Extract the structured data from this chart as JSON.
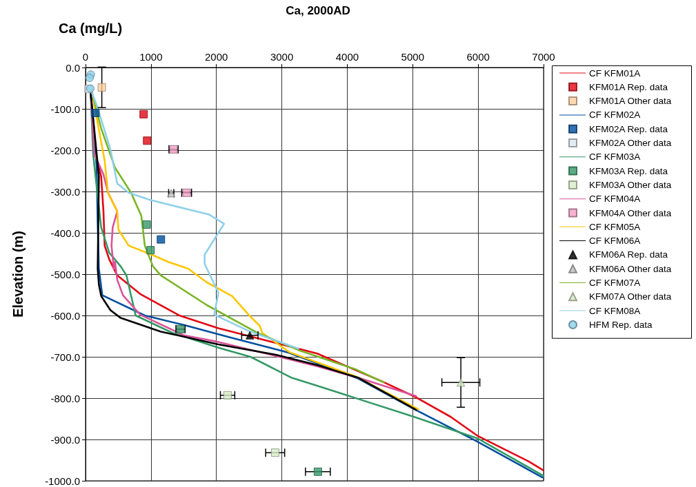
{
  "chart_data": {
    "type": "line",
    "title": "Ca, 2000AD",
    "xlabel": "Ca (mg/L)",
    "ylabel": "Elevation (m)",
    "xlim": [
      0,
      7000
    ],
    "xticks": [
      0,
      1000,
      2000,
      3000,
      4000,
      5000,
      6000,
      7000
    ],
    "ylim": [
      -1000,
      0
    ],
    "yticks": [
      {
        "value": 0,
        "label": "0.0"
      },
      {
        "value": -100,
        "label": "-100.0"
      },
      {
        "value": -200,
        "label": "-200.0"
      },
      {
        "value": -300,
        "label": "-300.0"
      },
      {
        "value": -400,
        "label": "-400.0"
      },
      {
        "value": -500,
        "label": "-500.0"
      },
      {
        "value": -600,
        "label": "-600.0"
      },
      {
        "value": -700,
        "label": "-700.0"
      },
      {
        "value": -800,
        "label": "-800.0"
      },
      {
        "value": -900,
        "label": "-900.0"
      },
      {
        "value": -1000,
        "label": "-1000.0"
      }
    ],
    "grid": true,
    "legend": "right",
    "series": [
      {
        "name": "CF KFM01A",
        "marker": "none",
        "color": "#e30613",
        "x": [
          80,
          169,
          239,
          274,
          292,
          362,
          485,
          836,
          1433,
          2030,
          3540,
          4524,
          5051,
          5578,
          6000,
          6772,
          6990
        ],
        "values": [
          -64,
          -220,
          -264,
          -348,
          -431,
          -464,
          -503,
          -548,
          -600,
          -631,
          -692,
          -759,
          -798,
          -845,
          -892,
          -953,
          -974
        ]
      },
      {
        "name": "KFM01A Rep. data",
        "type": "scatter",
        "marker": "square",
        "color": "#e30613",
        "x": [
          888,
          941
        ],
        "values": [
          -113,
          -177
        ]
      },
      {
        "name": "KFM01A Other data",
        "type": "scatter",
        "marker": "square",
        "color": "#fdd0a0",
        "x": [
          249
        ],
        "values": [
          -48
        ],
        "errors": [
          49
        ]
      },
      {
        "name": "CF KFM02A",
        "marker": "none",
        "color": "#004f9f",
        "x": [
          80,
          169,
          186,
          204,
          256,
          906,
          1503,
          2206,
          3084,
          4173,
          5016,
          5964,
          6983
        ],
        "values": [
          -64,
          -237,
          -376,
          -487,
          -551,
          -600,
          -623,
          -653,
          -689,
          -753,
          -826,
          -903,
          -992
        ]
      },
      {
        "name": "KFM02A Rep. data",
        "type": "scatter",
        "marker": "square",
        "color": "#004f9f",
        "x": [
          151,
          1152
        ],
        "values": [
          -110,
          -416
        ]
      },
      {
        "name": "KFM02A Other data",
        "type": "scatter",
        "marker": "square",
        "color": "#dce6f2",
        "x": [
          46
        ],
        "values": [
          -52
        ]
      },
      {
        "name": "CF KFM03A",
        "marker": "none",
        "color": "#339966",
        "x": [
          80,
          116,
          169,
          239,
          362,
          537,
          625,
          766,
          1328,
          2030,
          2521,
          3154,
          3540,
          5016,
          6000,
          7000
        ],
        "values": [
          -64,
          -209,
          -287,
          -387,
          -448,
          -481,
          -503,
          -600,
          -642,
          -678,
          -700,
          -751,
          -770,
          -845,
          -898,
          -988
        ]
      },
      {
        "name": "KFM03A Rep. data",
        "type": "scatter",
        "marker": "square",
        "color": "#339966",
        "x": [
          934,
          994,
          1451,
          3551
        ],
        "values": [
          -380,
          -442,
          -633,
          -978
        ],
        "xerrors": [
          null,
          null,
          70,
          190
        ]
      },
      {
        "name": "KFM03A Other data",
        "type": "scatter",
        "marker": "square",
        "color": "#d8ecc8",
        "x": [
          2171,
          2898
        ],
        "values": [
          -793,
          -932
        ],
        "xerrors": [
          110,
          145
        ]
      },
      {
        "name": "CF KFM04A",
        "marker": "none",
        "color": "#d9539a",
        "x": [
          80,
          134,
          274,
          344,
          485,
          415,
          397,
          432,
          450,
          485,
          572,
          836,
          1503,
          2030,
          2908,
          3540,
          4173,
          5051
        ],
        "values": [
          -64,
          -209,
          -259,
          -303,
          -348,
          -387,
          -431,
          -487,
          -470,
          -514,
          -551,
          -598,
          -648,
          -664,
          -698,
          -723,
          -751,
          -795
        ]
      },
      {
        "name": "KFM04A Other data",
        "type": "scatter",
        "marker": "square",
        "color": "#f29fc5",
        "x": [
          1345,
          1545
        ],
        "values": [
          -198,
          -303
        ],
        "xerrors": [
          70,
          75
        ]
      },
      {
        "name": "CF KFM05A",
        "marker": "none",
        "color": "#ffc600",
        "x": [
          95,
          292,
          344,
          485,
          502,
          660,
          1012,
          1257,
          1571,
          1855,
          2241,
          2520,
          2663,
          2700,
          3119,
          4138,
          5086
        ],
        "values": [
          -58,
          -225,
          -303,
          -348,
          -392,
          -431,
          -453,
          -470,
          -487,
          -520,
          -553,
          -603,
          -625,
          -642,
          -689,
          -748,
          -827
        ]
      },
      {
        "name": "CF KFM06A",
        "marker": "none",
        "color": "#000000",
        "x": [
          80,
          204,
          186,
          204,
          239,
          380,
          537,
          1152,
          2030,
          2908,
          3540,
          4173,
          5050
        ],
        "values": [
          -64,
          -264,
          -487,
          -525,
          -553,
          -587,
          -606,
          -639,
          -670,
          -695,
          -720,
          -751,
          -828
        ]
      },
      {
        "name": "KFM06A Rep. data",
        "type": "scatter",
        "marker": "triangle",
        "color": "#000000",
        "x": [
          2511
        ],
        "values": [
          -648
        ],
        "xerrors": [
          125
        ]
      },
      {
        "name": "KFM06A Other data",
        "type": "scatter",
        "marker": "triangle",
        "color": "#c0c0c0",
        "x": [
          1310
        ],
        "values": [
          -304
        ],
        "xerrors": [
          40
        ]
      },
      {
        "name": "CF KFM07A",
        "marker": "none",
        "color": "#7ab526",
        "x": [
          95,
          240,
          450,
          695,
          853,
          906,
          1030,
          1152,
          1855,
          2627,
          3260,
          4138,
          4560
        ],
        "values": [
          -58,
          -148,
          -242,
          -303,
          -359,
          -431,
          -481,
          -503,
          -575,
          -642,
          -684,
          -731,
          -762
        ]
      },
      {
        "name": "KFM07A Other data",
        "type": "scatter",
        "marker": "triangle",
        "color": "#d8ecc8",
        "x": [
          5736
        ],
        "values": [
          -762
        ],
        "errors": [
          60
        ],
        "xerrors": [
          290
        ]
      },
      {
        "name": "CF KFM08A",
        "marker": "none",
        "color": "#8fd0e8",
        "x": [
          80,
          186,
          380,
          485,
          660,
          977,
          1890,
          2118,
          1820,
          1820,
          2030,
          1967,
          2487,
          3250
        ],
        "values": [
          -53,
          -98,
          -198,
          -281,
          -303,
          -320,
          -356,
          -378,
          -453,
          -475,
          -545,
          -598,
          -637,
          -680
        ]
      },
      {
        "name": "HFM Rep. data",
        "type": "scatter",
        "marker": "circle",
        "color": "#8fd0e8",
        "x": [
          81,
          63,
          74
        ],
        "values": [
          -17,
          -25,
          -51
        ]
      }
    ]
  }
}
